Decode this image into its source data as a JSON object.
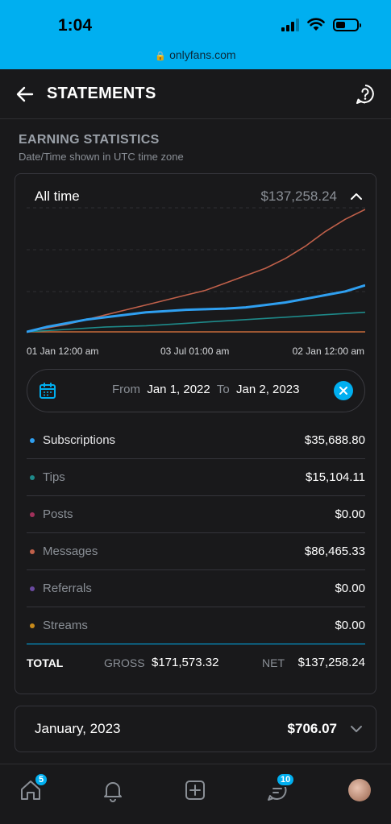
{
  "status_bar": {
    "time": "1:04",
    "url": "onlyfans.com"
  },
  "header": {
    "title": "STATEMENTS"
  },
  "section": {
    "title": "EARNING STATISTICS",
    "subtitle": "Date/Time shown in UTC time zone"
  },
  "summary": {
    "label": "All time",
    "amount": "$137,258.24"
  },
  "chart_data": {
    "type": "line",
    "x_labels": [
      "01 Jan 12:00 am",
      "03 Jul 01:00 am",
      "02 Jan 12:00 am"
    ],
    "series": [
      {
        "color": "#c0604a",
        "values": [
          0,
          3,
          6,
          10,
          14,
          18,
          22,
          26,
          30,
          34,
          40,
          46,
          52,
          60,
          70,
          82,
          92,
          100
        ]
      },
      {
        "color": "#2f9ff0",
        "values": [
          0,
          4,
          7,
          10,
          12,
          14,
          16,
          17,
          18,
          18.5,
          19,
          20,
          22,
          24,
          27,
          30,
          33,
          38
        ]
      },
      {
        "color": "#1e8a8a",
        "values": [
          0,
          1,
          2,
          3,
          4,
          4.5,
          5,
          6,
          7,
          8,
          9,
          10,
          11,
          12,
          13,
          14,
          15,
          16
        ]
      },
      {
        "color": "#c86a3a",
        "values": [
          0,
          0,
          0,
          0,
          0,
          0,
          0,
          0,
          0,
          0,
          0,
          0,
          0,
          0,
          0,
          0,
          0,
          0
        ]
      }
    ],
    "ylim": [
      0,
      100
    ]
  },
  "date_range": {
    "from_label": "From",
    "from": "Jan 1, 2022",
    "to_label": "To",
    "to": "Jan 2, 2023"
  },
  "rows": [
    {
      "label": "Subscriptions",
      "value": "$35,688.80",
      "color": "#2f9ff0"
    },
    {
      "label": "Tips",
      "value": "$15,104.11",
      "color": "#1e8a8a"
    },
    {
      "label": "Posts",
      "value": "$0.00",
      "color": "#a0305a"
    },
    {
      "label": "Messages",
      "value": "$86,465.33",
      "color": "#c0604a"
    },
    {
      "label": "Referrals",
      "value": "$0.00",
      "color": "#6a4aa0"
    },
    {
      "label": "Streams",
      "value": "$0.00",
      "color": "#c88a1a"
    }
  ],
  "total": {
    "label": "TOTAL",
    "gross_label": "GROSS",
    "gross": "$171,573.32",
    "net_label": "NET",
    "net": "$137,258.24"
  },
  "month": {
    "label": "January, 2023",
    "amount": "$706.07"
  },
  "nav": {
    "home_badge": "5",
    "messages_badge": "10"
  }
}
